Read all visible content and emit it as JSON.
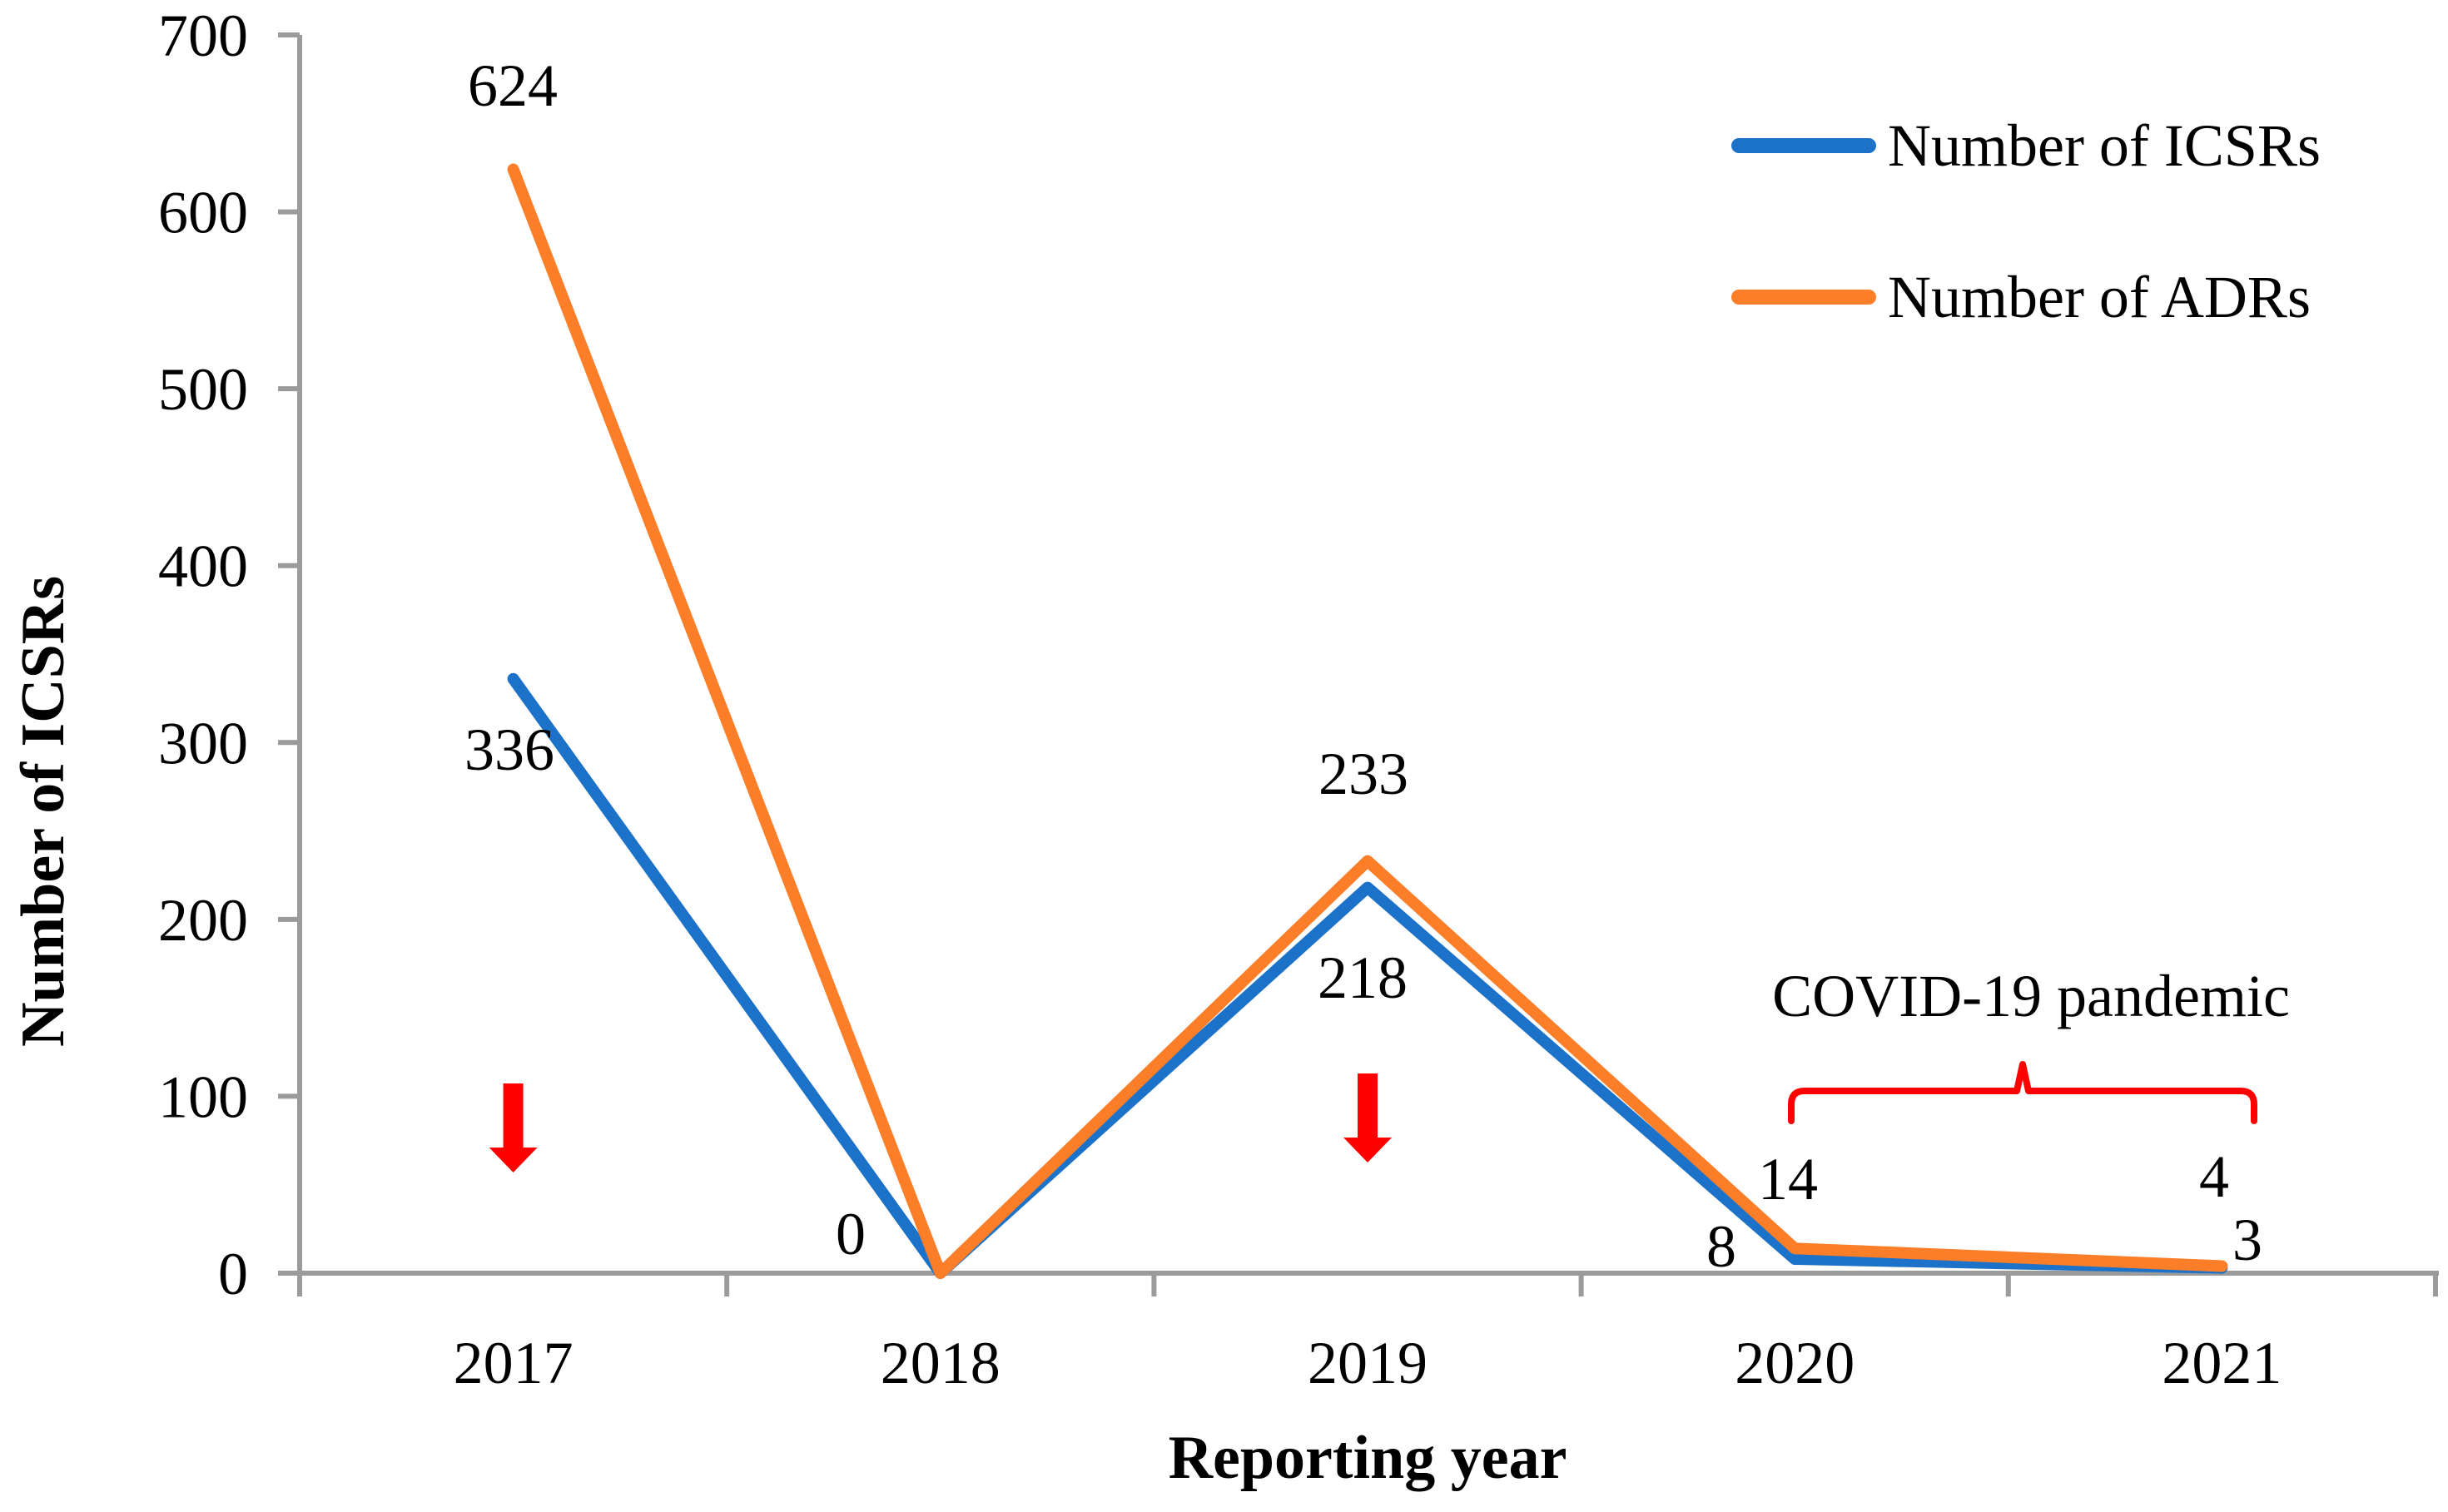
{
  "chart_data": {
    "type": "line",
    "categories": [
      "2017",
      "2018",
      "2019",
      "2020",
      "2021"
    ],
    "series": [
      {
        "name": "Number of ICSRs",
        "color": "#1C72C8",
        "values": [
          336,
          0,
          218,
          8,
          3
        ]
      },
      {
        "name": "Number of ADRs",
        "color": "#FD7E28",
        "values": [
          624,
          0,
          233,
          14,
          4
        ]
      }
    ],
    "xlabel": "Reporting year",
    "ylabel": "Number of ICSRs",
    "ylim": [
      0,
      700
    ],
    "ytick_step": 100,
    "grid": false,
    "legend_position": "top-right",
    "annotations": {
      "covid_label": "COVID-19 pandemic",
      "covid_span_categories": [
        "2020",
        "2021"
      ],
      "down_arrows_at_categories": [
        "2017",
        "2019"
      ]
    }
  },
  "colors": {
    "axis": "#9B9B9B",
    "annotation_red": "#FF0000",
    "text": "#000000",
    "background": "#FFFFFF"
  }
}
